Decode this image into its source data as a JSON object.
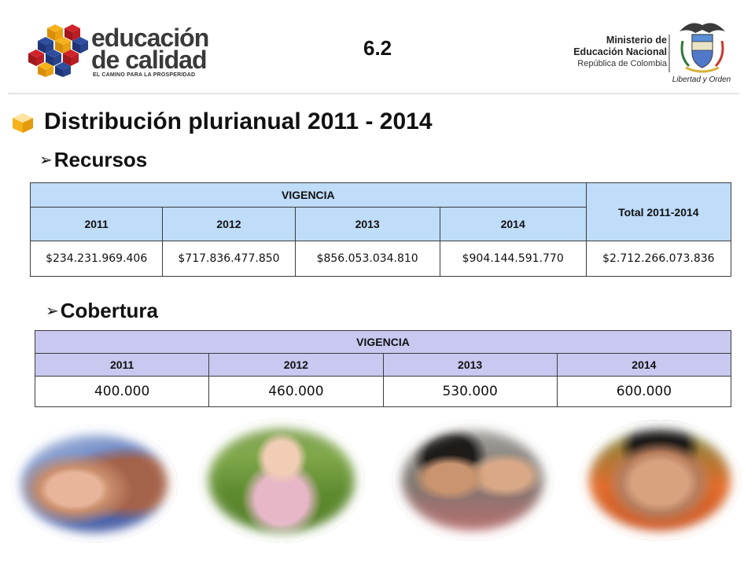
{
  "header": {
    "logo": {
      "line1": "educación",
      "line2": "de calidad",
      "tagline": "EL CAMINO PARA LA PROSPERIDAD"
    },
    "slide_number": "6.2",
    "ministry": {
      "line1": "Ministerio de",
      "line2": "Educación Nacional",
      "line3": "República de Colombia"
    },
    "motto": "Libertad y Orden"
  },
  "title": "Distribución plurianual 2011 - 2014",
  "recursos": {
    "heading": "Recursos",
    "group_header": "VIGENCIA",
    "total_header": "Total 2011-2014",
    "years": [
      "2011",
      "2012",
      "2013",
      "2014"
    ],
    "values": [
      "$234.231.969.406",
      "$717.836.477.850",
      "$856.053.034.810",
      "$904.144.591.770"
    ],
    "total": "$2.712.266.073.836"
  },
  "cobertura": {
    "heading": "Cobertura",
    "group_header": "VIGENCIA",
    "years": [
      "2011",
      "2012",
      "2013",
      "2014"
    ],
    "values": [
      "400.000",
      "460.000",
      "530.000",
      "600.000"
    ]
  },
  "icons": {
    "bullet": "arrowhead-bullet-icon",
    "title": "cube-bullet-icon"
  },
  "colors": {
    "recursos_header_bg": "#bfdcf9",
    "cobertura_header_bg": "#c8c8f0",
    "logo_blue": "#2f4ea0",
    "logo_red": "#d1232a",
    "logo_yellow": "#f5b21b"
  }
}
